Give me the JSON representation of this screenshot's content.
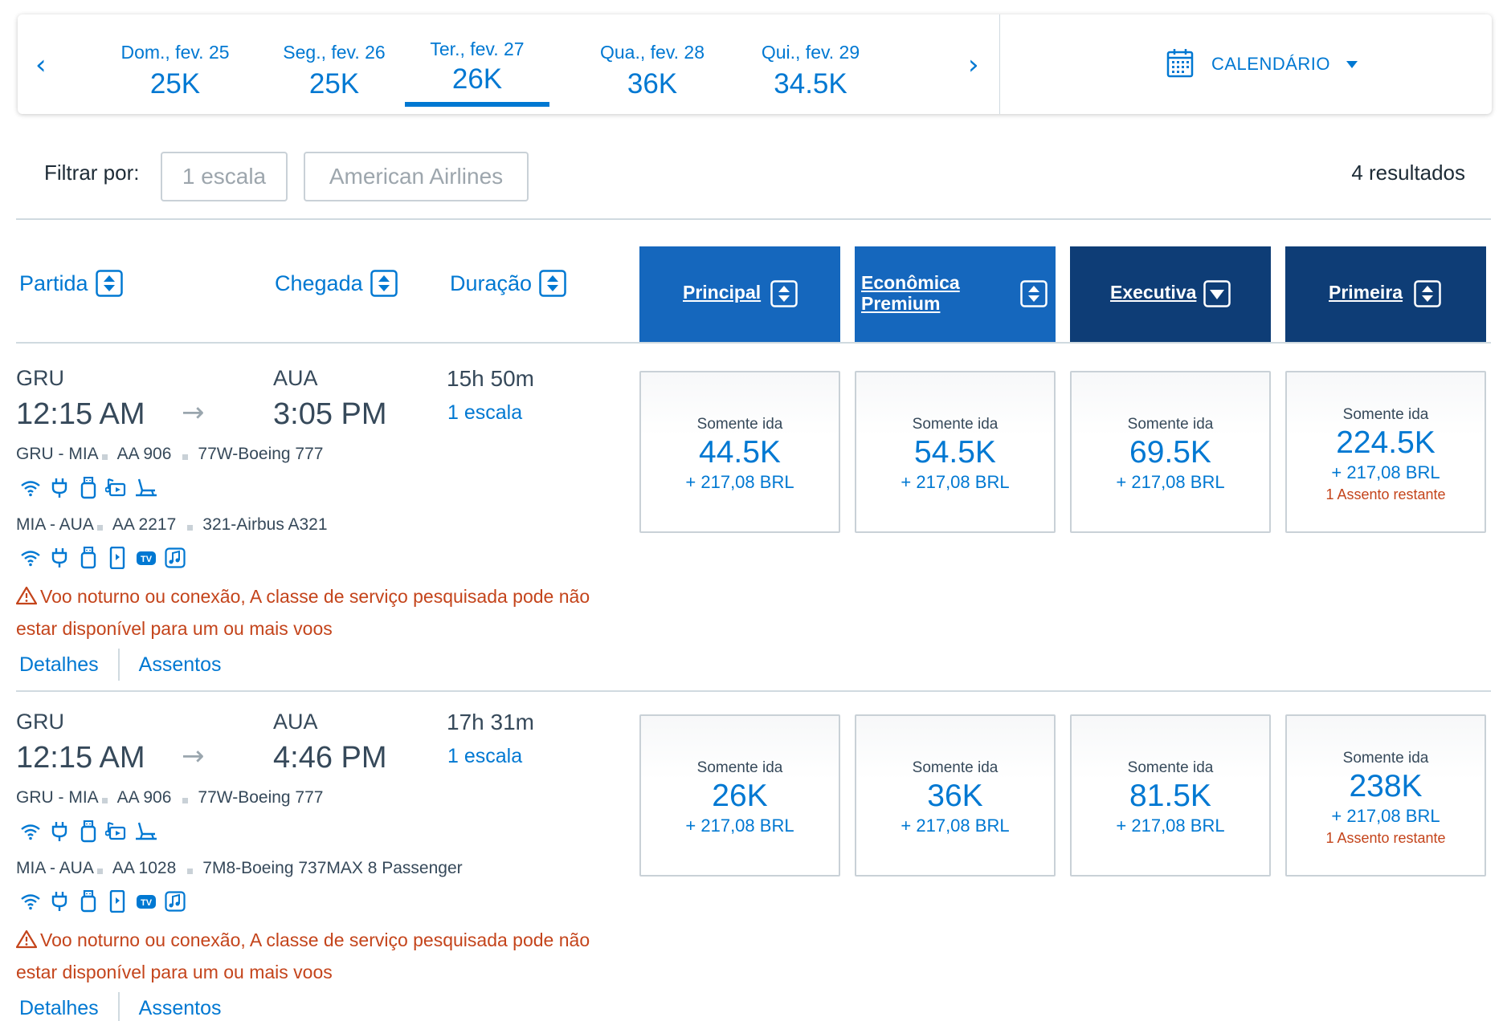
{
  "date_strip": {
    "prev_arrow": "‹",
    "next_arrow": "›",
    "dates": [
      {
        "label": "Dom., fev. 25",
        "price": "25K"
      },
      {
        "label": "Seg., fev. 26",
        "price": "25K"
      },
      {
        "label": "Ter., fev. 27",
        "price": "26K",
        "selected": true
      },
      {
        "label": "Qua., fev. 28",
        "price": "36K"
      },
      {
        "label": "Qui., fev. 29",
        "price": "34.5K"
      }
    ],
    "calendar_label": "CALENDÁRIO",
    "calendar_icon": "calendar-icon"
  },
  "filters": {
    "label": "Filtrar por:",
    "stops_chip": "1 escala",
    "airline_chip": "American Airlines",
    "results_count": "4 resultados"
  },
  "sort_header": {
    "departure": "Partida",
    "arrival": "Chegada",
    "duration": "Duração",
    "cabins": [
      {
        "line1": "Principal",
        "line2": "",
        "sort": "both"
      },
      {
        "line1": "Econômica",
        "line2": "Premium",
        "sort": "both"
      },
      {
        "line1": "Executiva",
        "line2": "",
        "sort": "down"
      },
      {
        "line1": "Primeira",
        "line2": "",
        "sort": "both"
      }
    ]
  },
  "flights": [
    {
      "origin": "GRU",
      "depart_time": "12:15 AM",
      "arrow": "→",
      "destination": "AUA",
      "arrive_time": "3:05 PM",
      "duration": "15h 50m",
      "stops": "1 escala",
      "segment1": {
        "route": "GRU - MIA",
        "flight": "AA 906",
        "aircraft": "77W-Boeing 777",
        "amenities": [
          "wifi-icon",
          "power-icon",
          "usb-icon",
          "entertainment-icon",
          "lie-flat-seat-icon"
        ]
      },
      "segment2": {
        "route": "MIA - AUA",
        "flight": "AA 2217",
        "aircraft": "321-Airbus A321",
        "amenities": [
          "wifi-icon",
          "power-icon",
          "usb-icon",
          "device-entertainment-icon",
          "tv-icon",
          "music-icon"
        ]
      },
      "warning_line1": "Voo noturno ou conexão, A classe de serviço pesquisada pode não",
      "warning_line2": "estar disponível para um ou mais voos",
      "details_link": "Detalhes",
      "seats_link": "Assentos",
      "fares": [
        {
          "type": "Somente ida",
          "miles": "44.5K",
          "tax": "+ 217,08 BRL",
          "seats": ""
        },
        {
          "type": "Somente ida",
          "miles": "54.5K",
          "tax": "+ 217,08 BRL",
          "seats": ""
        },
        {
          "type": "Somente ida",
          "miles": "69.5K",
          "tax": "+ 217,08 BRL",
          "seats": ""
        },
        {
          "type": "Somente ida",
          "miles": "224.5K",
          "tax": "+ 217,08 BRL",
          "seats": "1 Assento restante"
        }
      ]
    },
    {
      "origin": "GRU",
      "depart_time": "12:15 AM",
      "arrow": "→",
      "destination": "AUA",
      "arrive_time": "4:46 PM",
      "duration": "17h 31m",
      "stops": "1 escala",
      "segment1": {
        "route": "GRU - MIA",
        "flight": "AA 906",
        "aircraft": "77W-Boeing 777",
        "amenities": [
          "wifi-icon",
          "power-icon",
          "usb-icon",
          "entertainment-icon",
          "lie-flat-seat-icon"
        ]
      },
      "segment2": {
        "route": "MIA - AUA",
        "flight": "AA 1028",
        "aircraft": "7M8-Boeing 737MAX 8 Passenger",
        "amenities": [
          "wifi-icon",
          "power-icon",
          "usb-icon",
          "device-entertainment-icon",
          "tv-icon",
          "music-icon"
        ]
      },
      "warning_line1": "Voo noturno ou conexão, A classe de serviço pesquisada pode não",
      "warning_line2": "estar disponível para um ou mais voos",
      "details_link": "Detalhes",
      "seats_link": "Assentos",
      "fares": [
        {
          "type": "Somente ida",
          "miles": "26K",
          "tax": "+ 217,08 BRL",
          "seats": ""
        },
        {
          "type": "Somente ida",
          "miles": "36K",
          "tax": "+ 217,08 BRL",
          "seats": ""
        },
        {
          "type": "Somente ida",
          "miles": "81.5K",
          "tax": "+ 217,08 BRL",
          "seats": ""
        },
        {
          "type": "Somente ida",
          "miles": "238K",
          "tax": "+ 217,08 BRL",
          "seats": "1 Assento restante"
        }
      ]
    }
  ],
  "colors": {
    "accent": "#0078d2",
    "cabin_blue": "#1567bd",
    "cabin_dark": "#0e3d76",
    "warning": "#c4441b"
  }
}
